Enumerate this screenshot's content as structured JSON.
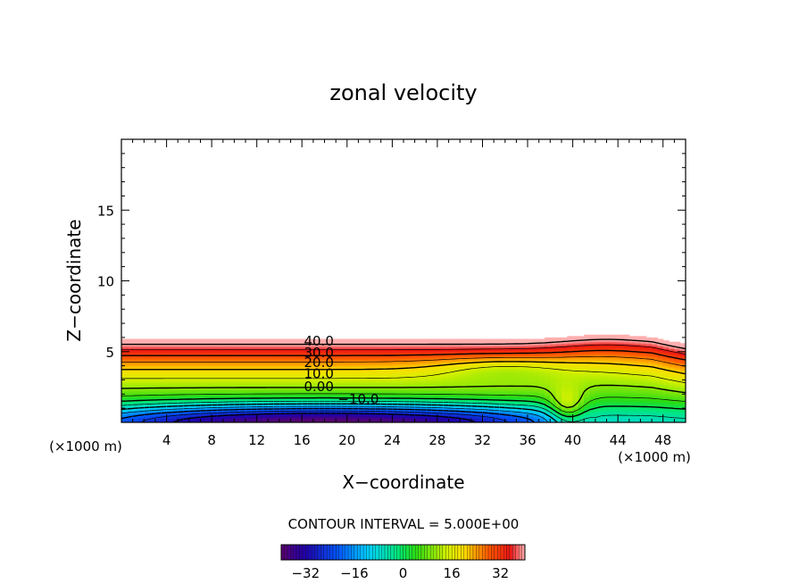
{
  "chart_data": {
    "type": "contour",
    "title": "zonal velocity",
    "xlabel": "X−coordinate",
    "ylabel": "Z−coordinate",
    "x_unit_left": "(×1000 m)",
    "x_unit_right": "(×1000 m)",
    "xlim": [
      0,
      50
    ],
    "ylim": [
      0,
      20
    ],
    "x_ticks": [
      4,
      8,
      12,
      16,
      20,
      24,
      28,
      32,
      36,
      40,
      44,
      48
    ],
    "x_tick_labels": [
      "4",
      "8",
      "12",
      "16",
      "20",
      "24",
      "28",
      "32",
      "36",
      "40",
      "44",
      "48"
    ],
    "y_ticks": [
      5,
      10,
      15
    ],
    "y_tick_labels": [
      "5",
      "10",
      "15"
    ],
    "contour_interval_text": "CONTOUR INTERVAL = 5.000E+00",
    "contour_labels": [
      {
        "text": "40.0",
        "x": 17.5,
        "z": 5.8
      },
      {
        "text": "30.0",
        "x": 17.5,
        "z": 5.0
      },
      {
        "text": "20.0",
        "x": 17.5,
        "z": 4.3
      },
      {
        "text": "10.0",
        "x": 17.5,
        "z": 3.5
      },
      {
        "text": "0.00",
        "x": 17.5,
        "z": 2.6
      },
      {
        "text": "−10.0",
        "x": 21.0,
        "z": 1.7
      }
    ],
    "colorbar": {
      "min": -40,
      "max": 40,
      "tick_values": [
        -32,
        -16,
        0,
        16,
        32
      ],
      "tick_labels": [
        "−32",
        "−16",
        "0",
        "16",
        "32"
      ]
    },
    "grid": false,
    "legend": "colorbar-bottom"
  }
}
